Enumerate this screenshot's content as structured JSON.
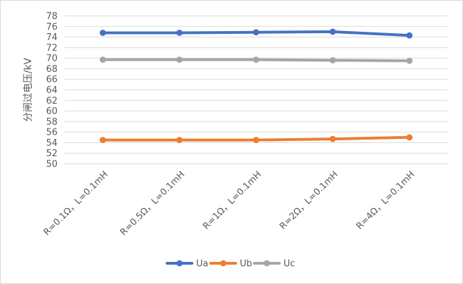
{
  "chart_data": {
    "type": "line",
    "title": "",
    "xlabel": "",
    "ylabel": "分闸过电压/kV",
    "categories": [
      "R=0.1Ω，L=0.1mH",
      "R=0.5Ω，L=0.1mH",
      "R=1Ω，L=0.1mH",
      "R=2Ω，L=0.1mH",
      "R=4Ω，L=0.1mH"
    ],
    "ylim": [
      50,
      78
    ],
    "yticks": [
      50,
      52,
      54,
      56,
      58,
      60,
      62,
      64,
      66,
      68,
      70,
      72,
      74,
      76,
      78
    ],
    "grid": true,
    "legend": "bottom",
    "series": [
      {
        "name": "Ua",
        "color": "#4472C4",
        "values": [
          74.8,
          74.8,
          74.9,
          75.0,
          74.3
        ]
      },
      {
        "name": "Ub",
        "color": "#ED7D31",
        "values": [
          54.5,
          54.5,
          54.5,
          54.7,
          55.0
        ]
      },
      {
        "name": "Uc",
        "color": "#A5A5A5",
        "values": [
          69.7,
          69.7,
          69.7,
          69.6,
          69.5
        ]
      }
    ]
  }
}
